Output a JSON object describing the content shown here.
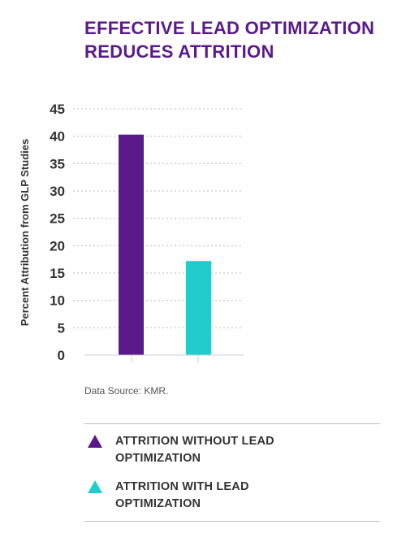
{
  "chart_data": {
    "type": "bar",
    "title": "EFFECTIVE LEAD OPTIMIZATION REDUCES ATTRITION",
    "ylabel": "Percent Attribution from GLP Studies",
    "xlabel": "",
    "ylim": [
      0,
      45
    ],
    "yticks": [
      0,
      5,
      10,
      15,
      20,
      25,
      30,
      35,
      40,
      45
    ],
    "grid": true,
    "series": [
      {
        "name": "ATTRITION WITHOUT LEAD OPTIMIZATION",
        "value": 40.3,
        "color": "#5a1a8c"
      },
      {
        "name": "ATTRITION WITH LEAD OPTIMIZATION",
        "value": 17.2,
        "color": "#22cccc"
      }
    ],
    "source": "Data Source: KMR.",
    "legend_position": "bottom"
  }
}
